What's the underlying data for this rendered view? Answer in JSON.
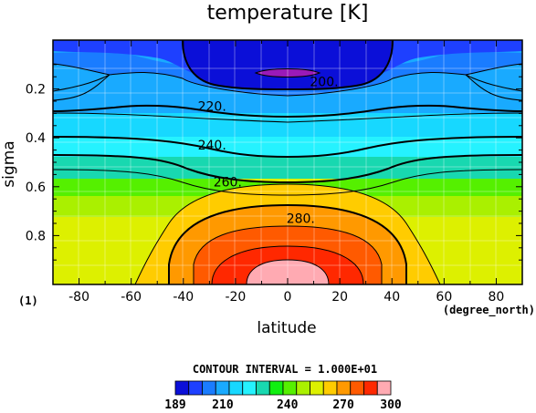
{
  "chart_data": {
    "type": "contour",
    "title": "temperature [K]",
    "xlabel": "latitude",
    "ylabel": "sigma",
    "x_unit": "(degree_north)",
    "y_unit": "(1)",
    "xlim": [
      -90,
      90
    ],
    "ylim": [
      0,
      1
    ],
    "y_inverted": true,
    "x_ticks": [
      -80,
      -60,
      -40,
      -20,
      0,
      20,
      40,
      60,
      80
    ],
    "y_ticks": [
      0.2,
      0.4,
      0.6,
      0.8
    ],
    "grid": true,
    "contour_interval_label": "CONTOUR INTERVAL = 1.000E+01",
    "contour_labels": [
      {
        "text": "200.",
        "lat": 14,
        "sigma": 0.17
      },
      {
        "text": "220.",
        "lat": -29,
        "sigma": 0.27
      },
      {
        "text": "240.",
        "lat": -29,
        "sigma": 0.43
      },
      {
        "text": "260.",
        "lat": -23,
        "sigma": 0.58
      },
      {
        "text": "280.",
        "lat": 5,
        "sigma": 0.73
      }
    ],
    "levels": [
      189,
      200,
      210,
      220,
      230,
      240,
      250,
      260,
      270,
      280,
      290,
      300
    ],
    "colorbar_labels": [
      "189",
      "210",
      "240",
      "270",
      "300"
    ],
    "level_colors": [
      "#0b0fd8",
      "#1e40ff",
      "#1a7cff",
      "#19aaff",
      "#17d8ff",
      "#25f2ff",
      "#18d8b0",
      "#10ef10",
      "#55f000",
      "#aaf000",
      "#ddf000",
      "#ffcc00",
      "#ff9900",
      "#ff5a00",
      "#ff2800",
      "#ffaab2"
    ]
  }
}
